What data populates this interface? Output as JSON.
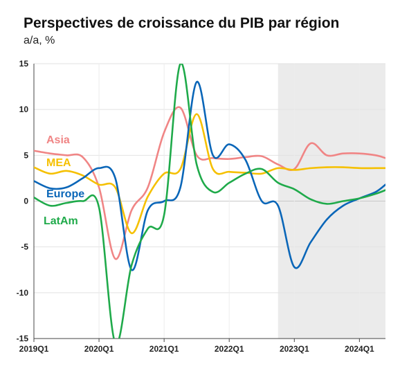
{
  "chart_data": {
    "type": "line",
    "title": "Perspectives de croissance du PIB par région",
    "subtitle": "a/a, %",
    "xlabel": "",
    "ylabel": "",
    "ylim": [
      -15,
      15
    ],
    "xlim": [
      2019.0,
      2024.4
    ],
    "yticks": [
      15,
      10,
      5,
      0,
      -5,
      -10,
      -15
    ],
    "xticks": [
      {
        "label": "2019Q1",
        "x": 2019.0
      },
      {
        "label": "2020Q1",
        "x": 2020.0
      },
      {
        "label": "2021Q1",
        "x": 2021.0
      },
      {
        "label": "2022Q1",
        "x": 2022.0
      },
      {
        "label": "2023Q1",
        "x": 2023.0
      },
      {
        "label": "2024Q1",
        "x": 2024.0
      }
    ],
    "forecast_shading_from": 2022.75,
    "grid": "horizontal",
    "series": [
      {
        "name": "Asia",
        "color": "#f08585",
        "x": [
          2019.0,
          2019.25,
          2019.5,
          2019.75,
          2020.0,
          2020.25,
          2020.5,
          2020.75,
          2021.0,
          2021.25,
          2021.5,
          2021.75,
          2022.0,
          2022.25,
          2022.5,
          2022.75,
          2023.0,
          2023.25,
          2023.5,
          2023.75,
          2024.0,
          2024.25,
          2024.4
        ],
        "y": [
          5.5,
          5.2,
          5.0,
          4.8,
          1.5,
          -6.3,
          -1.0,
          1.5,
          7.5,
          10.2,
          5.0,
          4.7,
          4.6,
          4.8,
          4.9,
          4.0,
          3.5,
          6.3,
          5.0,
          5.2,
          5.2,
          5.0,
          4.7
        ]
      },
      {
        "name": "MEA",
        "color": "#f5c000",
        "x": [
          2019.0,
          2019.25,
          2019.5,
          2019.75,
          2020.0,
          2020.25,
          2020.5,
          2020.75,
          2021.0,
          2021.25,
          2021.5,
          2021.75,
          2022.0,
          2022.25,
          2022.5,
          2022.75,
          2023.0,
          2023.25,
          2023.5,
          2023.75,
          2024.0,
          2024.25,
          2024.4
        ],
        "y": [
          3.7,
          3.0,
          3.3,
          2.8,
          1.8,
          1.5,
          -3.5,
          0.5,
          3.0,
          3.5,
          9.5,
          3.5,
          3.2,
          3.1,
          3.0,
          3.6,
          3.4,
          3.6,
          3.7,
          3.7,
          3.6,
          3.6,
          3.6
        ]
      },
      {
        "name": "Europe",
        "color": "#0a66b8",
        "x": [
          2019.0,
          2019.25,
          2019.5,
          2019.75,
          2020.0,
          2020.25,
          2020.5,
          2020.75,
          2021.0,
          2021.25,
          2021.5,
          2021.75,
          2022.0,
          2022.25,
          2022.5,
          2022.75,
          2023.0,
          2023.25,
          2023.5,
          2023.75,
          2024.0,
          2024.25,
          2024.4
        ],
        "y": [
          2.2,
          1.4,
          1.5,
          2.5,
          3.6,
          2.5,
          -7.5,
          -1.0,
          0.0,
          1.5,
          13.0,
          5.0,
          6.2,
          4.5,
          0.0,
          -0.5,
          -7.2,
          -4.5,
          -2.0,
          -0.5,
          0.3,
          1.0,
          1.8
        ]
      },
      {
        "name": "LatAm",
        "color": "#1faa4a",
        "x": [
          2019.0,
          2019.25,
          2019.5,
          2019.75,
          2020.0,
          2020.25,
          2020.5,
          2020.75,
          2021.0,
          2021.25,
          2021.5,
          2021.75,
          2022.0,
          2022.25,
          2022.5,
          2022.75,
          2023.0,
          2023.25,
          2023.5,
          2023.75,
          2024.0,
          2024.25,
          2024.4
        ],
        "y": [
          0.4,
          -0.5,
          -0.2,
          0.0,
          -0.7,
          -15.5,
          -7.0,
          -3.0,
          -1.5,
          15.0,
          4.0,
          1.0,
          2.0,
          3.0,
          3.5,
          2.0,
          1.3,
          0.2,
          -0.3,
          0.0,
          0.3,
          0.8,
          1.2
        ]
      }
    ]
  }
}
